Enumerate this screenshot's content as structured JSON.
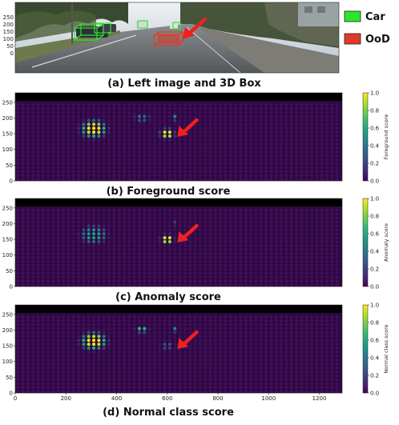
{
  "colors": {
    "car_box": "#2ee62e",
    "ood_box": "#e23a2a",
    "arrow": "#ee2020",
    "viridis": [
      "#440154",
      "#482878",
      "#3e4989",
      "#31688e",
      "#26828e",
      "#1f9e89",
      "#35b779",
      "#6ece58",
      "#b5de2b",
      "#fde725"
    ]
  },
  "panel_a": {
    "caption": "(a) Left image and 3D Box",
    "y_ticks": [
      "0",
      "50",
      "100",
      "150",
      "200",
      "250"
    ],
    "legend": [
      {
        "label": "Car",
        "color": "#2ee62e"
      },
      {
        "label": "OoD",
        "color": "#e23a2a"
      }
    ],
    "image_icon": "street-scene-image",
    "arrow_icon": "red-arrow-icon"
  },
  "chart_data": [
    {
      "type": "scatter",
      "caption": "(b) Foreground score",
      "colorbar_label": "Foreground score",
      "colorbar_ticks": [
        "0.0",
        "0.2",
        "0.4",
        "0.6",
        "0.8",
        "1.0"
      ],
      "colormap": "viridis",
      "xlim": [
        0,
        1290
      ],
      "ylim": [
        0,
        280
      ],
      "y_ticks": [
        "0",
        "50",
        "100",
        "150",
        "200",
        "250"
      ],
      "x_ticks": [],
      "background_value": 0.03,
      "clusters": [
        {
          "x": 310,
          "y": 165,
          "peak": 0.97,
          "sx": 40,
          "sy": 22
        },
        {
          "x": 600,
          "y": 150,
          "peak": 0.96,
          "sx": 22,
          "sy": 13
        },
        {
          "x": 500,
          "y": 200,
          "peak": 0.35,
          "sx": 25,
          "sy": 8
        },
        {
          "x": 635,
          "y": 200,
          "peak": 0.9,
          "sx": 7,
          "sy": 6
        },
        {
          "x": 1285,
          "y": 60,
          "peak": 0.3,
          "sx": 8,
          "sy": 50
        }
      ]
    },
    {
      "type": "scatter",
      "caption": "(c) Anomaly score",
      "colorbar_label": "Anomaly score",
      "colorbar_ticks": [
        "0.0",
        "0.2",
        "0.4",
        "0.6",
        "0.8",
        "1.0"
      ],
      "colormap": "viridis",
      "xlim": [
        0,
        1290
      ],
      "ylim": [
        0,
        280
      ],
      "y_ticks": [
        "0",
        "50",
        "100",
        "150",
        "200",
        "250"
      ],
      "x_ticks": [],
      "background_value": 0.03,
      "clusters": [
        {
          "x": 310,
          "y": 165,
          "peak": 0.5,
          "sx": 40,
          "sy": 22
        },
        {
          "x": 600,
          "y": 150,
          "peak": 0.97,
          "sx": 20,
          "sy": 12
        },
        {
          "x": 635,
          "y": 200,
          "peak": 0.3,
          "sx": 7,
          "sy": 6
        },
        {
          "x": 1285,
          "y": 60,
          "peak": 0.2,
          "sx": 8,
          "sy": 50
        }
      ]
    },
    {
      "type": "scatter",
      "caption": "(d) Normal class score",
      "colorbar_label": "Normal class score",
      "colorbar_ticks": [
        "0.0",
        "0.2",
        "0.4",
        "0.6",
        "0.8",
        "1.0"
      ],
      "colormap": "viridis",
      "xlim": [
        0,
        1290
      ],
      "ylim": [
        0,
        280
      ],
      "y_ticks": [
        "0",
        "50",
        "100",
        "150",
        "200",
        "250"
      ],
      "x_ticks": [
        "0",
        "200",
        "400",
        "600",
        "800",
        "1000",
        "1200"
      ],
      "background_value": 0.03,
      "clusters": [
        {
          "x": 310,
          "y": 165,
          "peak": 0.97,
          "sx": 40,
          "sy": 22
        },
        {
          "x": 500,
          "y": 200,
          "peak": 0.9,
          "sx": 22,
          "sy": 6
        },
        {
          "x": 635,
          "y": 200,
          "peak": 0.9,
          "sx": 7,
          "sy": 6
        },
        {
          "x": 600,
          "y": 150,
          "peak": 0.2,
          "sx": 20,
          "sy": 12
        },
        {
          "x": 1285,
          "y": 60,
          "peak": 0.3,
          "sx": 8,
          "sy": 50
        }
      ]
    }
  ]
}
